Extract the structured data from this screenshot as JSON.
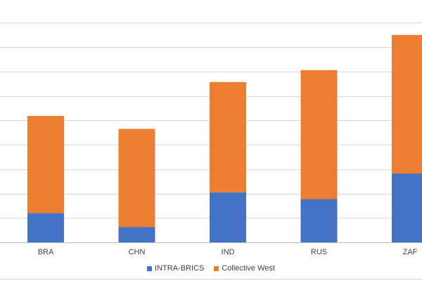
{
  "chart_data": {
    "type": "bar",
    "stacked": true,
    "title": "",
    "xlabel": "",
    "ylabel": "",
    "categories": [
      "BRA",
      "CHN",
      "IND",
      "RUS",
      "ZAF"
    ],
    "series": [
      {
        "name": "INTRA-BRICS",
        "color": "#4472C4",
        "values": [
          12,
          6.3,
          20.5,
          17.7,
          28.2
        ]
      },
      {
        "name": "Collective West",
        "color": "#ED7D31",
        "values": [
          39.8,
          40.2,
          45.2,
          52.9,
          56.8
        ]
      }
    ],
    "ylim": [
      0,
      95
    ],
    "gridline_step": 10,
    "grid": true,
    "legend_position": "bottom"
  }
}
